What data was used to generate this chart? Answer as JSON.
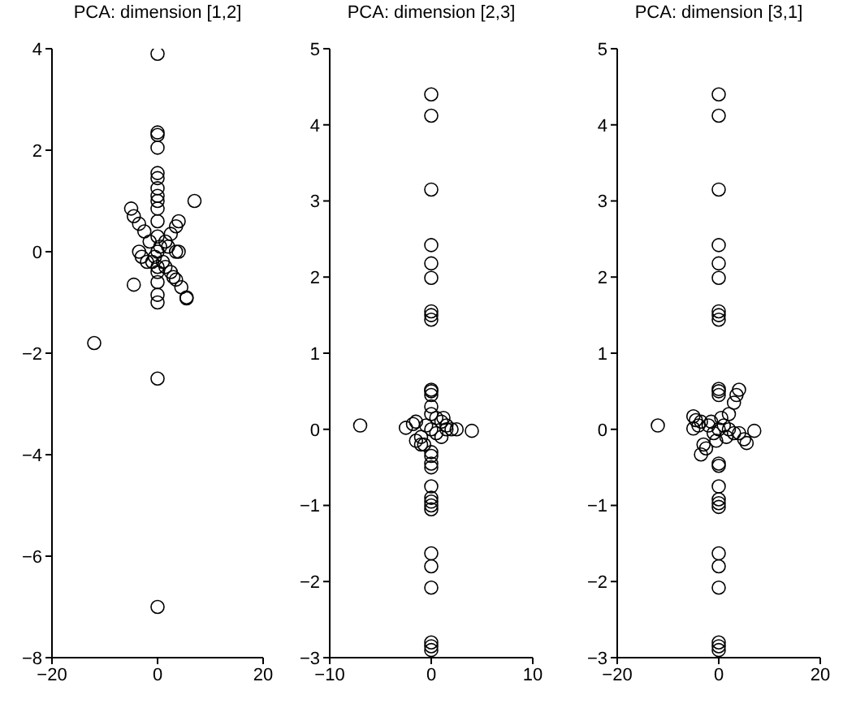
{
  "chart_data": [
    {
      "type": "scatter",
      "title": "PCA: dimension [1,2]",
      "xlim": [
        -20,
        20
      ],
      "ylim": [
        -8,
        4
      ],
      "xticks": [
        -20,
        0,
        20
      ],
      "yticks": [
        -8,
        -6,
        -4,
        -2,
        0,
        2,
        4
      ],
      "marker": "circle",
      "color": "#000000",
      "grid": false,
      "x": [
        0,
        0,
        0,
        0,
        0,
        0,
        0,
        0,
        0,
        0,
        0,
        0,
        0,
        0,
        0,
        0,
        0,
        -12,
        7,
        -5,
        -4.5,
        -3.5,
        -2.5,
        -4.5,
        4,
        3.5,
        2.5,
        4,
        3.5,
        -3.5,
        -3,
        2.5,
        3.5,
        3,
        4.5,
        5.5,
        5.5,
        1.5,
        -1.5,
        1,
        -1,
        0,
        0.5,
        -0.5,
        2,
        -2,
        1.5,
        0,
        0
      ],
      "values": [
        3.9,
        2.35,
        2.3,
        2.05,
        1.55,
        1.45,
        1.25,
        1.1,
        1.0,
        0.85,
        0.6,
        -0.4,
        -0.6,
        -0.85,
        -1.0,
        -2.5,
        -7.0,
        -1.8,
        1.0,
        0.85,
        0.7,
        0.55,
        0.4,
        -0.65,
        0.6,
        0.5,
        0.35,
        0,
        0,
        0,
        -0.1,
        -0.4,
        -0.55,
        -0.5,
        -0.7,
        -0.9,
        -0.92,
        0.2,
        0.2,
        -0.2,
        -0.2,
        0,
        0.1,
        -0.1,
        0.1,
        -0.2,
        -0.3,
        0.3,
        -0.3
      ]
    },
    {
      "type": "scatter",
      "title": "PCA: dimension [2,3]",
      "xlim": [
        -10,
        10
      ],
      "ylim": [
        -3,
        5
      ],
      "xticks": [
        -10,
        0,
        10
      ],
      "yticks": [
        -3,
        -2,
        -1,
        0,
        1,
        2,
        3,
        4,
        5
      ],
      "marker": "circle",
      "color": "#000000",
      "grid": false,
      "x": [
        0,
        0,
        0,
        0,
        0,
        0,
        0,
        0,
        0,
        0,
        0,
        0,
        0,
        0,
        0,
        0,
        0,
        0,
        0,
        0,
        0,
        0,
        0,
        0,
        0,
        0,
        0,
        0,
        0,
        -7,
        -2.5,
        -1.8,
        4,
        2.5,
        2,
        1.5,
        1,
        -1,
        -1.5,
        -1,
        0.5,
        1,
        -0.5,
        0,
        0.5,
        1.5,
        -1.5,
        1.2,
        -0.7
      ],
      "values": [
        4.4,
        4.12,
        3.15,
        2.42,
        2.18,
        1.99,
        1.55,
        1.5,
        1.44,
        0.52,
        0.5,
        0.45,
        0.3,
        0.2,
        -0.3,
        -0.35,
        -0.45,
        -0.5,
        -0.75,
        -0.9,
        -0.95,
        -1.0,
        -1.05,
        -1.63,
        -1.8,
        -2.08,
        -2.8,
        -2.85,
        -2.9,
        0.05,
        0.02,
        0.07,
        -0.02,
        0,
        0,
        0,
        0.1,
        -0.1,
        -0.15,
        -0.2,
        0.15,
        -0.1,
        0.05,
        0,
        -0.05,
        0.05,
        0.1,
        0.15,
        -0.2
      ]
    },
    {
      "type": "scatter",
      "title": "PCA: dimension [3,1]",
      "xlim": [
        -20,
        20
      ],
      "ylim": [
        -3,
        5
      ],
      "xticks": [
        -20,
        0,
        20
      ],
      "yticks": [
        -3,
        -2,
        -1,
        0,
        1,
        2,
        3,
        4,
        5
      ],
      "marker": "circle",
      "color": "#000000",
      "grid": false,
      "x": [
        0,
        0,
        0,
        0,
        0,
        0,
        0,
        0,
        0,
        0,
        0,
        0,
        0,
        0,
        0,
        0,
        0,
        0,
        0,
        0,
        0,
        0,
        0,
        0,
        -12,
        7,
        4,
        3.5,
        3,
        2,
        -5,
        -4.5,
        -4,
        -3.5,
        -5,
        -3,
        -3.5,
        -2.5,
        5.5,
        5,
        4,
        3,
        2,
        1,
        -1,
        0,
        -2,
        1.5,
        -1.5,
        0.5,
        -0.5
      ],
      "values": [
        4.4,
        4.12,
        3.15,
        2.42,
        2.18,
        1.99,
        1.55,
        1.5,
        1.44,
        0.53,
        0.5,
        0.45,
        -0.45,
        -0.48,
        -0.75,
        -0.92,
        -0.97,
        -1.02,
        -1.63,
        -1.8,
        -2.08,
        -2.8,
        -2.85,
        -2.9,
        0.05,
        -0.02,
        0.52,
        0.45,
        0.35,
        0.2,
        0.17,
        0.12,
        0.05,
        0.1,
        0.01,
        -0.2,
        -0.33,
        -0.25,
        -0.18,
        -0.13,
        -0.05,
        -0.05,
        0,
        0.05,
        -0.05,
        0,
        0.05,
        -0.1,
        0.1,
        0.15,
        -0.15
      ]
    }
  ]
}
